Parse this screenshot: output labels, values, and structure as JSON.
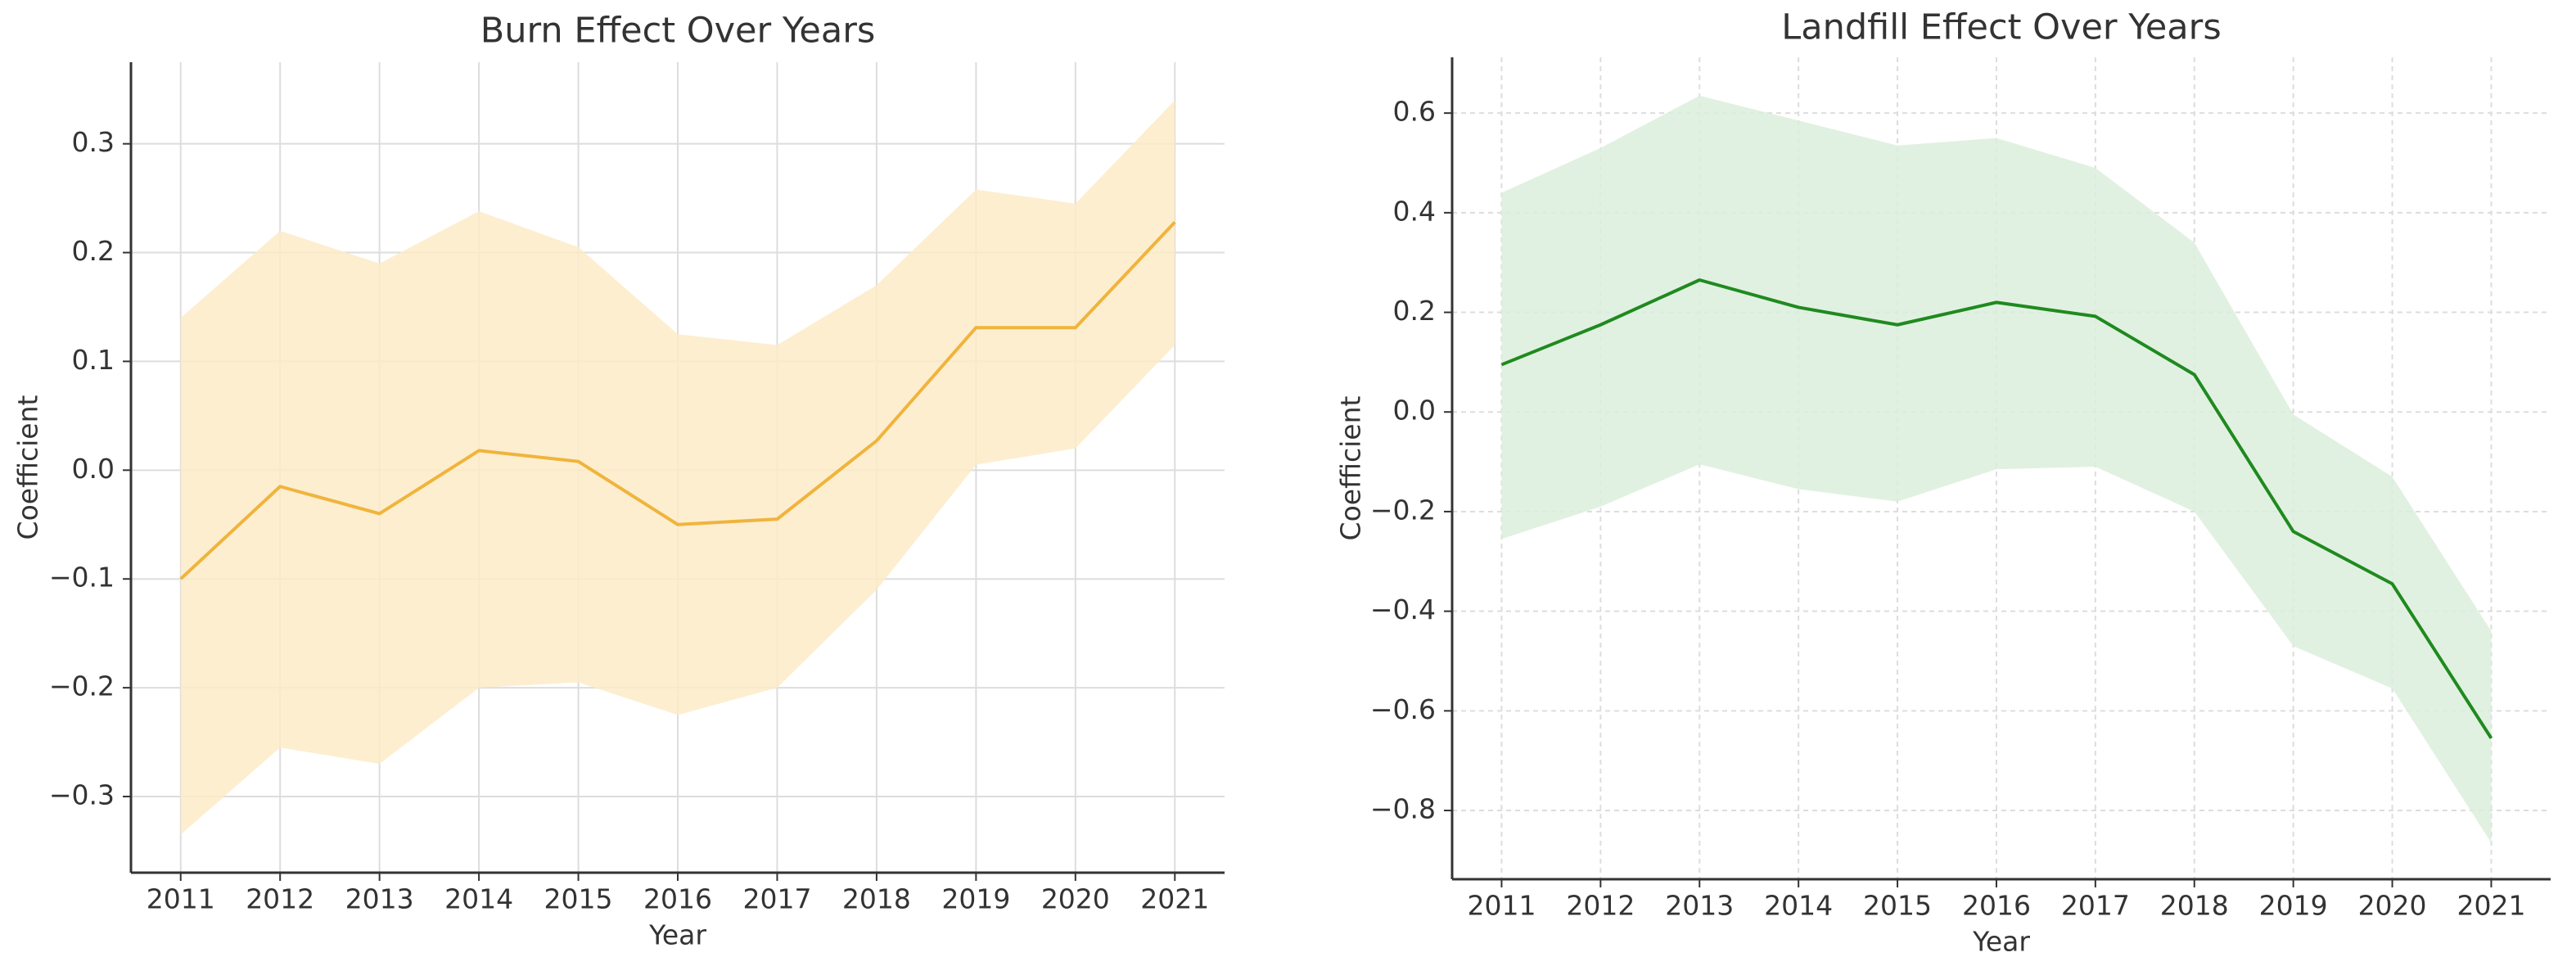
{
  "chart_data": [
    {
      "type": "line",
      "title": "Burn Effect Over Years",
      "xlabel": "Year",
      "ylabel": "Coefficient",
      "x": [
        2011,
        2012,
        2013,
        2014,
        2015,
        2016,
        2017,
        2018,
        2019,
        2020,
        2021
      ],
      "values": [
        -0.1,
        -0.015,
        -0.04,
        0.018,
        0.008,
        -0.05,
        -0.045,
        0.027,
        0.131,
        0.131,
        0.228
      ],
      "upper": [
        0.14,
        0.22,
        0.19,
        0.238,
        0.205,
        0.125,
        0.115,
        0.17,
        0.258,
        0.245,
        0.34
      ],
      "lower": [
        -0.335,
        -0.255,
        -0.27,
        -0.2,
        -0.195,
        -0.225,
        -0.2,
        -0.11,
        0.005,
        0.02,
        0.115
      ],
      "color": "#f0b43c",
      "band_color": "#fdebc8",
      "xlim": [
        2010.5,
        2021.5
      ],
      "xticks": [
        2011,
        2012,
        2013,
        2014,
        2015,
        2016,
        2017,
        2018,
        2019,
        2020,
        2021
      ],
      "ylim": [
        -0.37,
        0.375
      ],
      "yticks": [
        {
          "value": -0.3,
          "label": "−0.3"
        },
        {
          "value": -0.2,
          "label": "−0.2"
        },
        {
          "value": -0.1,
          "label": "−0.1"
        },
        {
          "value": 0,
          "label": "0.0"
        },
        0.1,
        0.2,
        0.3
      ],
      "grid": true,
      "grid_dashed": false
    },
    {
      "type": "line",
      "title": "Landfill Effect Over Years",
      "xlabel": "Year",
      "ylabel": "Coefficient",
      "x": [
        2011,
        2012,
        2013,
        2014,
        2015,
        2016,
        2017,
        2018,
        2019,
        2020,
        2021
      ],
      "values": [
        0.095,
        0.175,
        0.265,
        0.21,
        0.175,
        0.22,
        0.192,
        0.075,
        -0.24,
        -0.345,
        -0.655
      ],
      "upper": [
        0.44,
        0.53,
        0.635,
        0.585,
        0.535,
        0.55,
        0.49,
        0.34,
        -0.005,
        -0.13,
        -0.44
      ],
      "lower": [
        -0.255,
        -0.19,
        -0.105,
        -0.155,
        -0.18,
        -0.115,
        -0.11,
        -0.2,
        -0.47,
        -0.555,
        -0.865
      ],
      "color": "#1f8a1f",
      "band_color": "#dcefdc",
      "xlim": [
        2010.5,
        2021.6
      ],
      "xticks": [
        2011,
        2012,
        2013,
        2014,
        2015,
        2016,
        2017,
        2018,
        2019,
        2020,
        2021
      ],
      "ylim": [
        -0.938,
        0.712
      ],
      "yticks": [
        {
          "value": -0.8,
          "label": "−0.8"
        },
        {
          "value": -0.6,
          "label": "−0.6"
        },
        {
          "value": -0.4,
          "label": "−0.4"
        },
        {
          "value": -0.2,
          "label": "−0.2"
        },
        {
          "value": 0,
          "label": "0.0"
        },
        0.2,
        0.4,
        0.6
      ],
      "grid": true,
      "grid_dashed": true
    }
  ]
}
